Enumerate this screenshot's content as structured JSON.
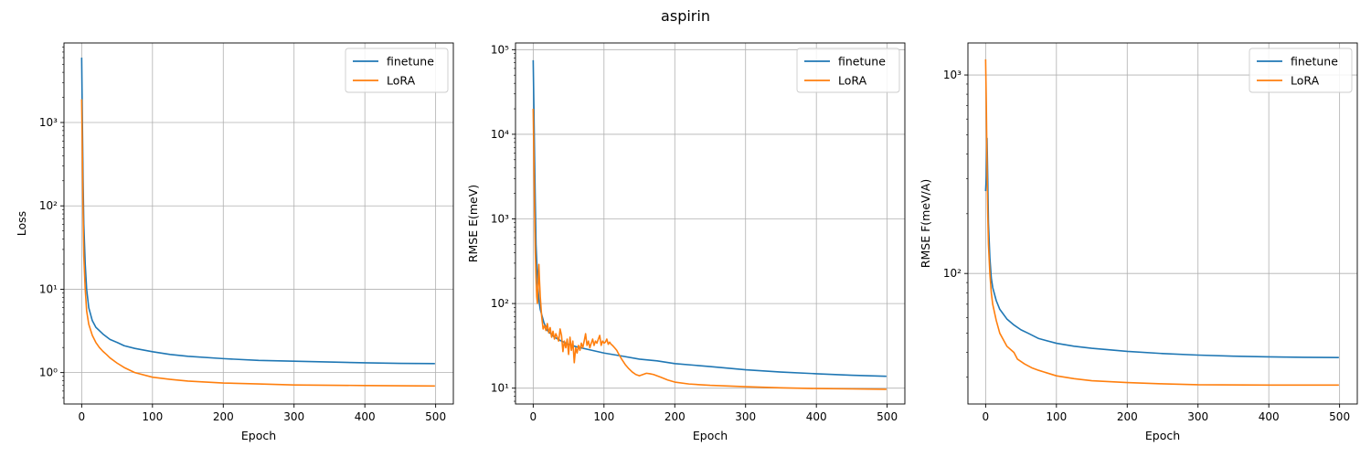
{
  "figure": {
    "suptitle": "aspirin"
  },
  "colors": {
    "finetune": "#1f77b4",
    "LoRA": "#ff7f0e",
    "grid": "#b0b0b0"
  },
  "chart_data": [
    {
      "type": "line",
      "title": "",
      "xlabel": "Epoch",
      "ylabel": "Loss",
      "yscale": "log",
      "xlim": [
        -25,
        525
      ],
      "ylim": [
        0.42,
        9000
      ],
      "xticks": [
        0,
        100,
        200,
        300,
        400,
        500
      ],
      "yticks": [
        1,
        10,
        100,
        1000
      ],
      "ytick_labels": [
        "10⁰",
        "10¹",
        "10²",
        "10³"
      ],
      "grid": true,
      "legend": "top-right",
      "series": [
        {
          "name": "finetune",
          "points": [
            [
              0,
              6000
            ],
            [
              1,
              1000
            ],
            [
              2,
              200
            ],
            [
              3,
              60
            ],
            [
              5,
              20
            ],
            [
              7,
              10
            ],
            [
              10,
              6
            ],
            [
              15,
              4.2
            ],
            [
              20,
              3.5
            ],
            [
              30,
              2.9
            ],
            [
              40,
              2.5
            ],
            [
              50,
              2.3
            ],
            [
              60,
              2.1
            ],
            [
              75,
              1.95
            ],
            [
              100,
              1.78
            ],
            [
              125,
              1.65
            ],
            [
              150,
              1.57
            ],
            [
              200,
              1.47
            ],
            [
              250,
              1.4
            ],
            [
              300,
              1.37
            ],
            [
              350,
              1.34
            ],
            [
              400,
              1.31
            ],
            [
              450,
              1.29
            ],
            [
              499,
              1.28
            ]
          ]
        },
        {
          "name": "LoRA",
          "points": [
            [
              0,
              1900
            ],
            [
              1,
              400
            ],
            [
              2,
              80
            ],
            [
              3,
              25
            ],
            [
              5,
              10
            ],
            [
              7,
              5.5
            ],
            [
              10,
              3.8
            ],
            [
              15,
              2.8
            ],
            [
              20,
              2.3
            ],
            [
              25,
              2.0
            ],
            [
              30,
              1.8
            ],
            [
              35,
              1.65
            ],
            [
              40,
              1.5
            ],
            [
              50,
              1.3
            ],
            [
              60,
              1.15
            ],
            [
              75,
              1.0
            ],
            [
              100,
              0.88
            ],
            [
              125,
              0.83
            ],
            [
              150,
              0.79
            ],
            [
              200,
              0.75
            ],
            [
              250,
              0.73
            ],
            [
              300,
              0.71
            ],
            [
              400,
              0.7
            ],
            [
              499,
              0.69
            ]
          ]
        }
      ]
    },
    {
      "type": "line",
      "title": "",
      "xlabel": "Epoch",
      "ylabel": "RMSE E(meV)",
      "yscale": "log",
      "xlim": [
        -25,
        525
      ],
      "ylim": [
        6.5,
        120000
      ],
      "xticks": [
        0,
        100,
        200,
        300,
        400,
        500
      ],
      "yticks": [
        10,
        100,
        1000,
        10000,
        100000
      ],
      "ytick_labels": [
        "10¹",
        "10²",
        "10³",
        "10⁴",
        "10⁵"
      ],
      "grid": true,
      "legend": "top-right",
      "series": [
        {
          "name": "finetune",
          "points": [
            [
              0,
              75000
            ],
            [
              1,
              20000
            ],
            [
              2,
              5000
            ],
            [
              3,
              1500
            ],
            [
              4,
              500
            ],
            [
              6,
              200
            ],
            [
              8,
              110
            ],
            [
              10,
              85
            ],
            [
              15,
              60
            ],
            [
              20,
              48
            ],
            [
              30,
              40
            ],
            [
              40,
              36
            ],
            [
              50,
              33
            ],
            [
              60,
              31
            ],
            [
              75,
              29
            ],
            [
              100,
              26
            ],
            [
              125,
              24
            ],
            [
              150,
              22
            ],
            [
              175,
              21
            ],
            [
              200,
              19.5
            ],
            [
              250,
              18
            ],
            [
              300,
              16.5
            ],
            [
              350,
              15.5
            ],
            [
              400,
              14.8
            ],
            [
              450,
              14.2
            ],
            [
              499,
              13.8
            ]
          ]
        },
        {
          "name": "LoRA",
          "points": [
            [
              0,
              20000
            ],
            [
              1,
              5000
            ],
            [
              2,
              1200
            ],
            [
              3,
              400
            ],
            [
              4,
              200
            ],
            [
              5,
              120
            ],
            [
              6,
              100
            ],
            [
              7,
              170
            ],
            [
              8,
              290
            ],
            [
              9,
              180
            ],
            [
              10,
              120
            ],
            [
              12,
              70
            ],
            [
              14,
              50
            ],
            [
              16,
              55
            ],
            [
              18,
              48
            ],
            [
              20,
              58
            ],
            [
              22,
              45
            ],
            [
              24,
              52
            ],
            [
              26,
              40
            ],
            [
              28,
              47
            ],
            [
              30,
              38
            ],
            [
              32,
              44
            ],
            [
              34,
              40
            ],
            [
              36,
              36
            ],
            [
              38,
              50
            ],
            [
              40,
              42
            ],
            [
              42,
              27
            ],
            [
              44,
              36
            ],
            [
              46,
              30
            ],
            [
              48,
              38
            ],
            [
              50,
              25
            ],
            [
              52,
              40
            ],
            [
              54,
              28
            ],
            [
              56,
              36
            ],
            [
              58,
              20
            ],
            [
              60,
              30
            ],
            [
              62,
              26
            ],
            [
              64,
              32
            ],
            [
              66,
              28
            ],
            [
              68,
              34
            ],
            [
              70,
              30
            ],
            [
              72,
              36
            ],
            [
              74,
              44
            ],
            [
              76,
              32
            ],
            [
              78,
              36
            ],
            [
              80,
              30
            ],
            [
              82,
              34
            ],
            [
              84,
              38
            ],
            [
              86,
              32
            ],
            [
              88,
              36
            ],
            [
              90,
              34
            ],
            [
              92,
              38
            ],
            [
              94,
              42
            ],
            [
              96,
              32
            ],
            [
              98,
              36
            ],
            [
              100,
              34
            ],
            [
              102,
              35
            ],
            [
              104,
              38
            ],
            [
              106,
              33
            ],
            [
              108,
              35
            ],
            [
              110,
              33
            ],
            [
              112,
              32
            ],
            [
              115,
              30
            ],
            [
              118,
              28
            ],
            [
              120,
              26
            ],
            [
              125,
              22
            ],
            [
              130,
              19
            ],
            [
              135,
              17
            ],
            [
              140,
              15.5
            ],
            [
              145,
              14.5
            ],
            [
              150,
              14
            ],
            [
              155,
              14.5
            ],
            [
              160,
              15
            ],
            [
              165,
              14.8
            ],
            [
              170,
              14.5
            ],
            [
              180,
              13.5
            ],
            [
              190,
              12.5
            ],
            [
              200,
              11.8
            ],
            [
              220,
              11.2
            ],
            [
              250,
              10.8
            ],
            [
              300,
              10.4
            ],
            [
              350,
              10.1
            ],
            [
              400,
              9.9
            ],
            [
              450,
              9.8
            ],
            [
              499,
              9.7
            ]
          ]
        }
      ]
    },
    {
      "type": "line",
      "title": "",
      "xlabel": "Epoch",
      "ylabel": "RMSE F(meV/A)",
      "yscale": "log",
      "xlim": [
        -25,
        525
      ],
      "ylim": [
        22,
        1450
      ],
      "xticks": [
        0,
        100,
        200,
        300,
        400,
        500
      ],
      "yticks": [
        100,
        1000
      ],
      "ytick_labels": [
        "10²",
        "10³"
      ],
      "grid": true,
      "legend": "top-right",
      "series": [
        {
          "name": "finetune",
          "points": [
            [
              0,
              260
            ],
            [
              1,
              310
            ],
            [
              2,
              480
            ],
            [
              3,
              300
            ],
            [
              4,
              180
            ],
            [
              6,
              120
            ],
            [
              8,
              95
            ],
            [
              10,
              85
            ],
            [
              15,
              73
            ],
            [
              20,
              66
            ],
            [
              30,
              59
            ],
            [
              40,
              55
            ],
            [
              50,
              52
            ],
            [
              60,
              50
            ],
            [
              75,
              47
            ],
            [
              100,
              44.5
            ],
            [
              125,
              43
            ],
            [
              150,
              42
            ],
            [
              200,
              40.5
            ],
            [
              250,
              39.5
            ],
            [
              300,
              38.8
            ],
            [
              350,
              38.3
            ],
            [
              400,
              38
            ],
            [
              450,
              37.8
            ],
            [
              499,
              37.7
            ]
          ]
        },
        {
          "name": "LoRA",
          "points": [
            [
              0,
              1200
            ],
            [
              1,
              700
            ],
            [
              2,
              350
            ],
            [
              3,
              200
            ],
            [
              4,
              140
            ],
            [
              6,
              100
            ],
            [
              8,
              80
            ],
            [
              10,
              70
            ],
            [
              15,
              58
            ],
            [
              20,
              50
            ],
            [
              30,
              43
            ],
            [
              40,
              40
            ],
            [
              45,
              37
            ],
            [
              55,
              35
            ],
            [
              65,
              33.5
            ],
            [
              75,
              32.5
            ],
            [
              100,
              30.5
            ],
            [
              125,
              29.5
            ],
            [
              150,
              28.8
            ],
            [
              200,
              28.2
            ],
            [
              250,
              27.8
            ],
            [
              300,
              27.5
            ],
            [
              400,
              27.4
            ],
            [
              499,
              27.4
            ]
          ]
        }
      ]
    }
  ]
}
